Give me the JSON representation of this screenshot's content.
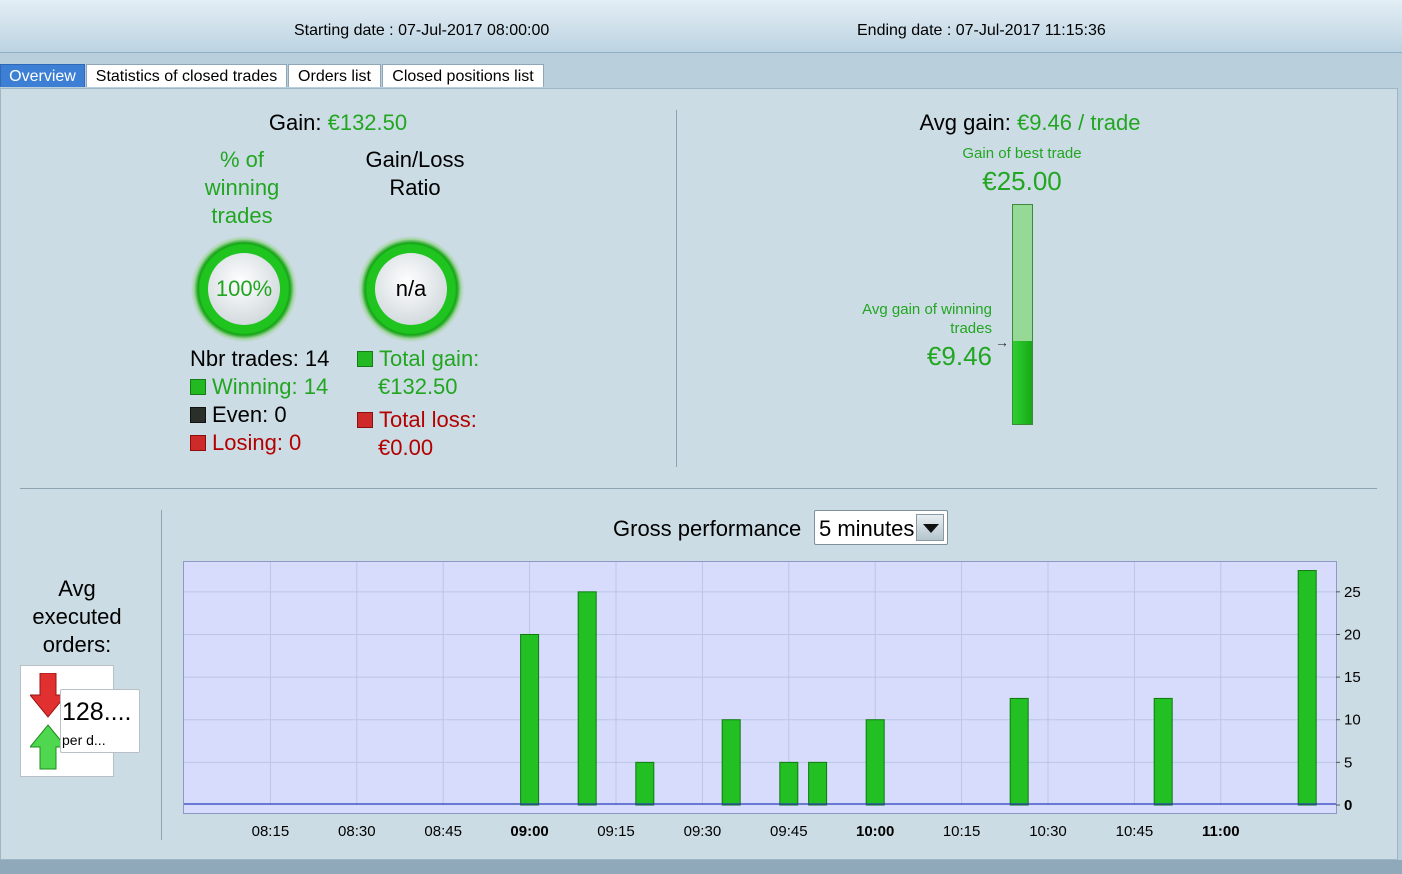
{
  "header": {
    "start_label": "Starting date : 07-Jul-2017 08:00:00",
    "end_label": "Ending date : 07-Jul-2017 11:15:36"
  },
  "tabs": [
    {
      "label": "Overview",
      "active": true
    },
    {
      "label": "Statistics of closed trades",
      "active": false
    },
    {
      "label": "Orders list",
      "active": false
    },
    {
      "label": "Closed positions list",
      "active": false
    }
  ],
  "gain": {
    "label": "Gain:",
    "value": "€132.50"
  },
  "winning_pct": {
    "title": "% of winning trades",
    "value": "100%"
  },
  "gain_loss_ratio": {
    "title": "Gain/Loss Ratio",
    "value": "n/a"
  },
  "trades": {
    "nbr": "Nbr trades: 14",
    "winning": "Winning: 14",
    "even": "Even: 0",
    "losing": "Losing: 0"
  },
  "totals": {
    "gain_label": "Total gain:",
    "gain_value": "€132.50",
    "loss_label": "Total loss:",
    "loss_value": "€0.00"
  },
  "avg_gain": {
    "label": "Avg gain:",
    "value": "€9.46 / trade",
    "best_label": "Gain of best trade",
    "best_value": "€25.00",
    "avg_winning_label": "Avg gain of winning trades",
    "avg_winning_value": "€9.46",
    "bar_fill_fraction": 0.378
  },
  "orders": {
    "title": "Avg executed orders:",
    "value": "128....",
    "unit": "per d..."
  },
  "performance": {
    "title": "Gross performance",
    "period": "5 minutes"
  },
  "colors": {
    "green": "#22a622",
    "red": "#b30000",
    "bar": "#22c022",
    "plot_bg": "#d7dcfc"
  },
  "chart_data": {
    "type": "bar",
    "x": [
      "09:00",
      "09:10",
      "09:20",
      "09:35",
      "09:45",
      "09:50",
      "10:00",
      "10:25",
      "10:50",
      "11:15"
    ],
    "values": [
      20,
      25,
      5,
      10,
      5,
      5,
      10,
      12.5,
      12.5,
      27.5
    ],
    "xticks": [
      "08:15",
      "08:30",
      "08:45",
      "09:00",
      "09:15",
      "09:30",
      "09:45",
      "10:00",
      "10:15",
      "10:30",
      "10:45",
      "11:00"
    ],
    "xticks_bold": [
      "09:00",
      "10:00",
      "11:00"
    ],
    "yticks": [
      "0",
      "5",
      "10",
      "15",
      "20",
      "25"
    ],
    "ylim": [
      0,
      28.5
    ],
    "xlim": [
      "08:00",
      "11:20"
    ],
    "grid": true,
    "y_axis_side": "right"
  }
}
